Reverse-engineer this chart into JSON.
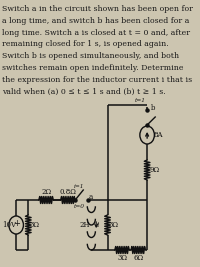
{
  "bg_color": "#ccc5b0",
  "text_color": "#1a1a1a",
  "title_lines": [
    "Switch a in the circuit shown has been open for",
    "a long time, and switch b has been closed for a",
    "long time. Switch a is closed at t = 0 and, after",
    "remaining closed for 1 s, is opened again.",
    "Switch b is opened simultaneously, and both",
    "switches remain open indefinitely. Determine",
    "the expression for the inductor current i that is",
    "valid when (a) 0 ≤ t ≤ 1 s and (b) t ≥ 1 s."
  ],
  "lw": 1.0,
  "lw_wire": 1.1
}
